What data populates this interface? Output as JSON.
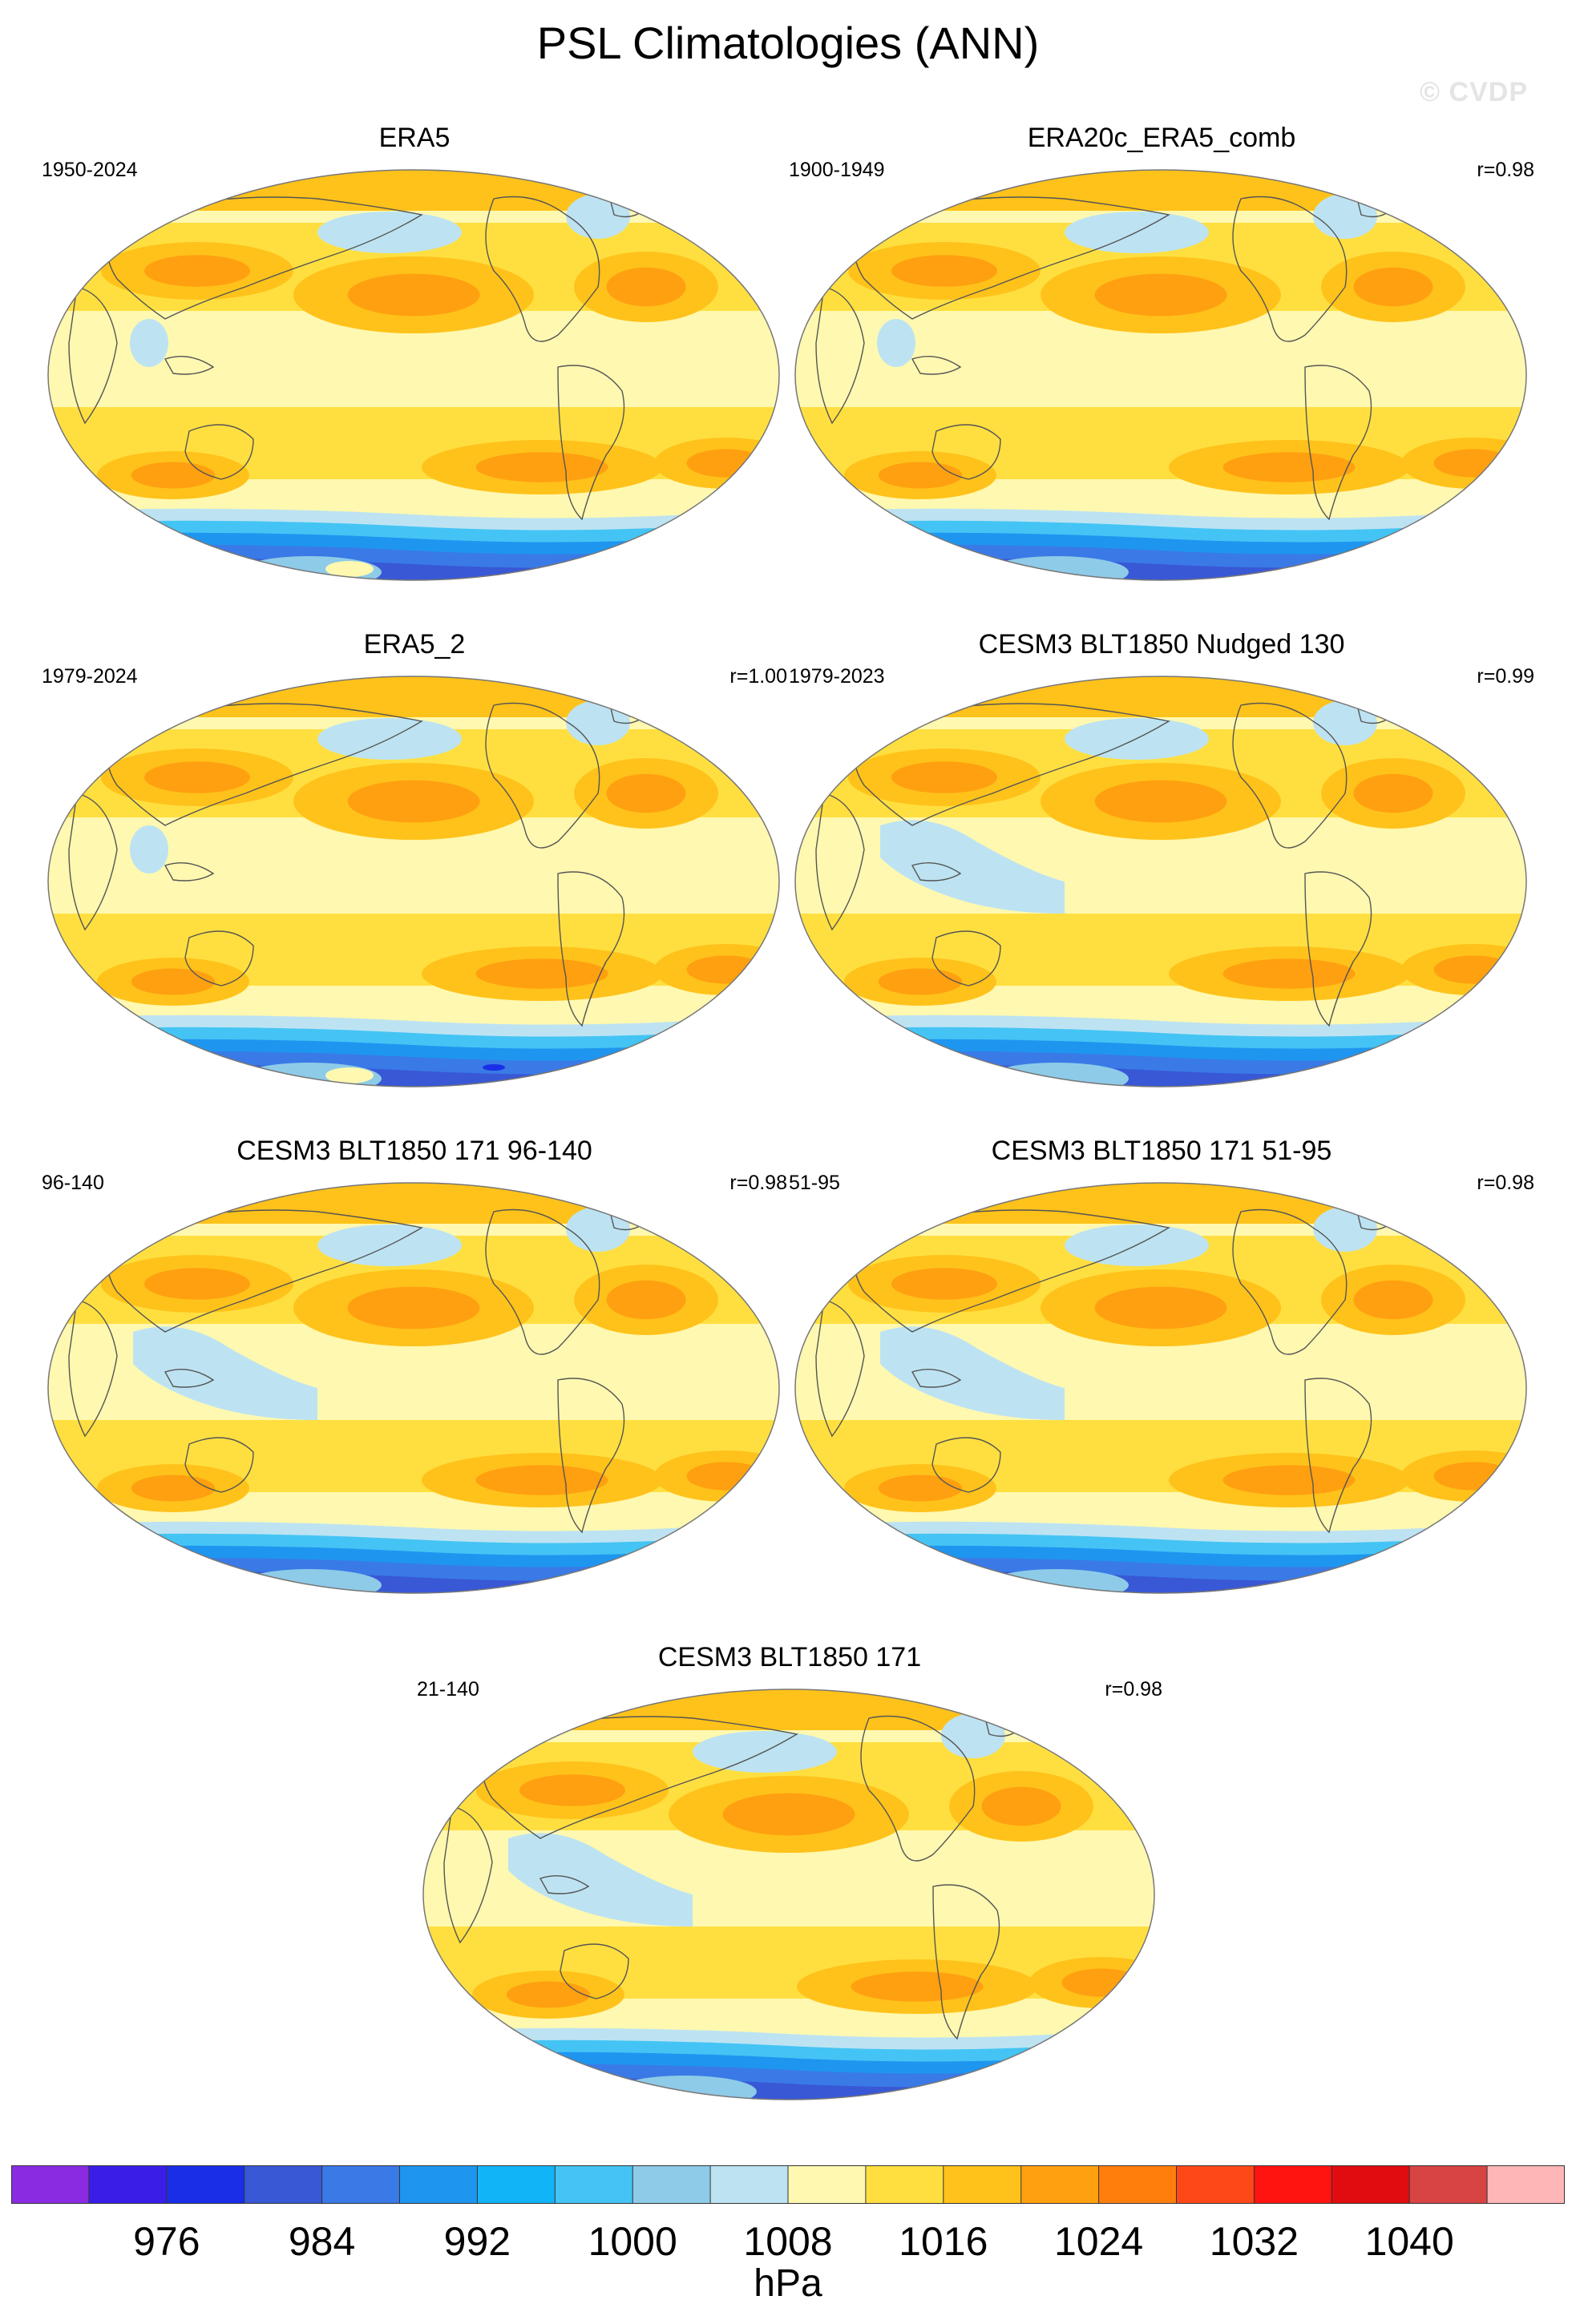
{
  "title": "PSL Climatologies (ANN)",
  "watermark": "© CVDP",
  "panels": [
    {
      "title": "ERA5",
      "period": "1950-2024",
      "corr": "",
      "variant": "era"
    },
    {
      "title": "ERA20c_ERA5_comb",
      "period": "1900-1949",
      "corr": "r=0.98",
      "variant": "era20c"
    },
    {
      "title": "ERA5_2",
      "period": "1979-2024",
      "corr": "r=1.00",
      "variant": "era2"
    },
    {
      "title": "CESM3 BLT1850 Nudged 130",
      "period": "1979-2023",
      "corr": "r=0.99",
      "variant": "nudged"
    },
    {
      "title": "CESM3 BLT1850 171 96-140",
      "period": "96-140",
      "corr": "r=0.98",
      "variant": "model"
    },
    {
      "title": "CESM3 BLT1850 171 51-95",
      "period": "51-95",
      "corr": "r=0.98",
      "variant": "model"
    },
    {
      "title": "CESM3 BLT1850 171",
      "period": "21-140",
      "corr": "r=0.98",
      "variant": "model"
    }
  ],
  "colorbar": {
    "units": "hPa",
    "tick_labels": [
      "976",
      "984",
      "992",
      "1000",
      "1008",
      "1016",
      "1024",
      "1032",
      "1040"
    ],
    "colors": [
      "#8a2be2",
      "#3a1ee8",
      "#1a2ee8",
      "#3858d6",
      "#3a7ae6",
      "#1e96f0",
      "#12b4f8",
      "#44c4f4",
      "#8ecbe8",
      "#bde3f2",
      "#fff8b0",
      "#ffdf40",
      "#ffc21a",
      "#ffa010",
      "#ff7e0c",
      "#ff4818",
      "#ff1410",
      "#e00c10",
      "#d84444",
      "#ffb6b6"
    ]
  }
}
